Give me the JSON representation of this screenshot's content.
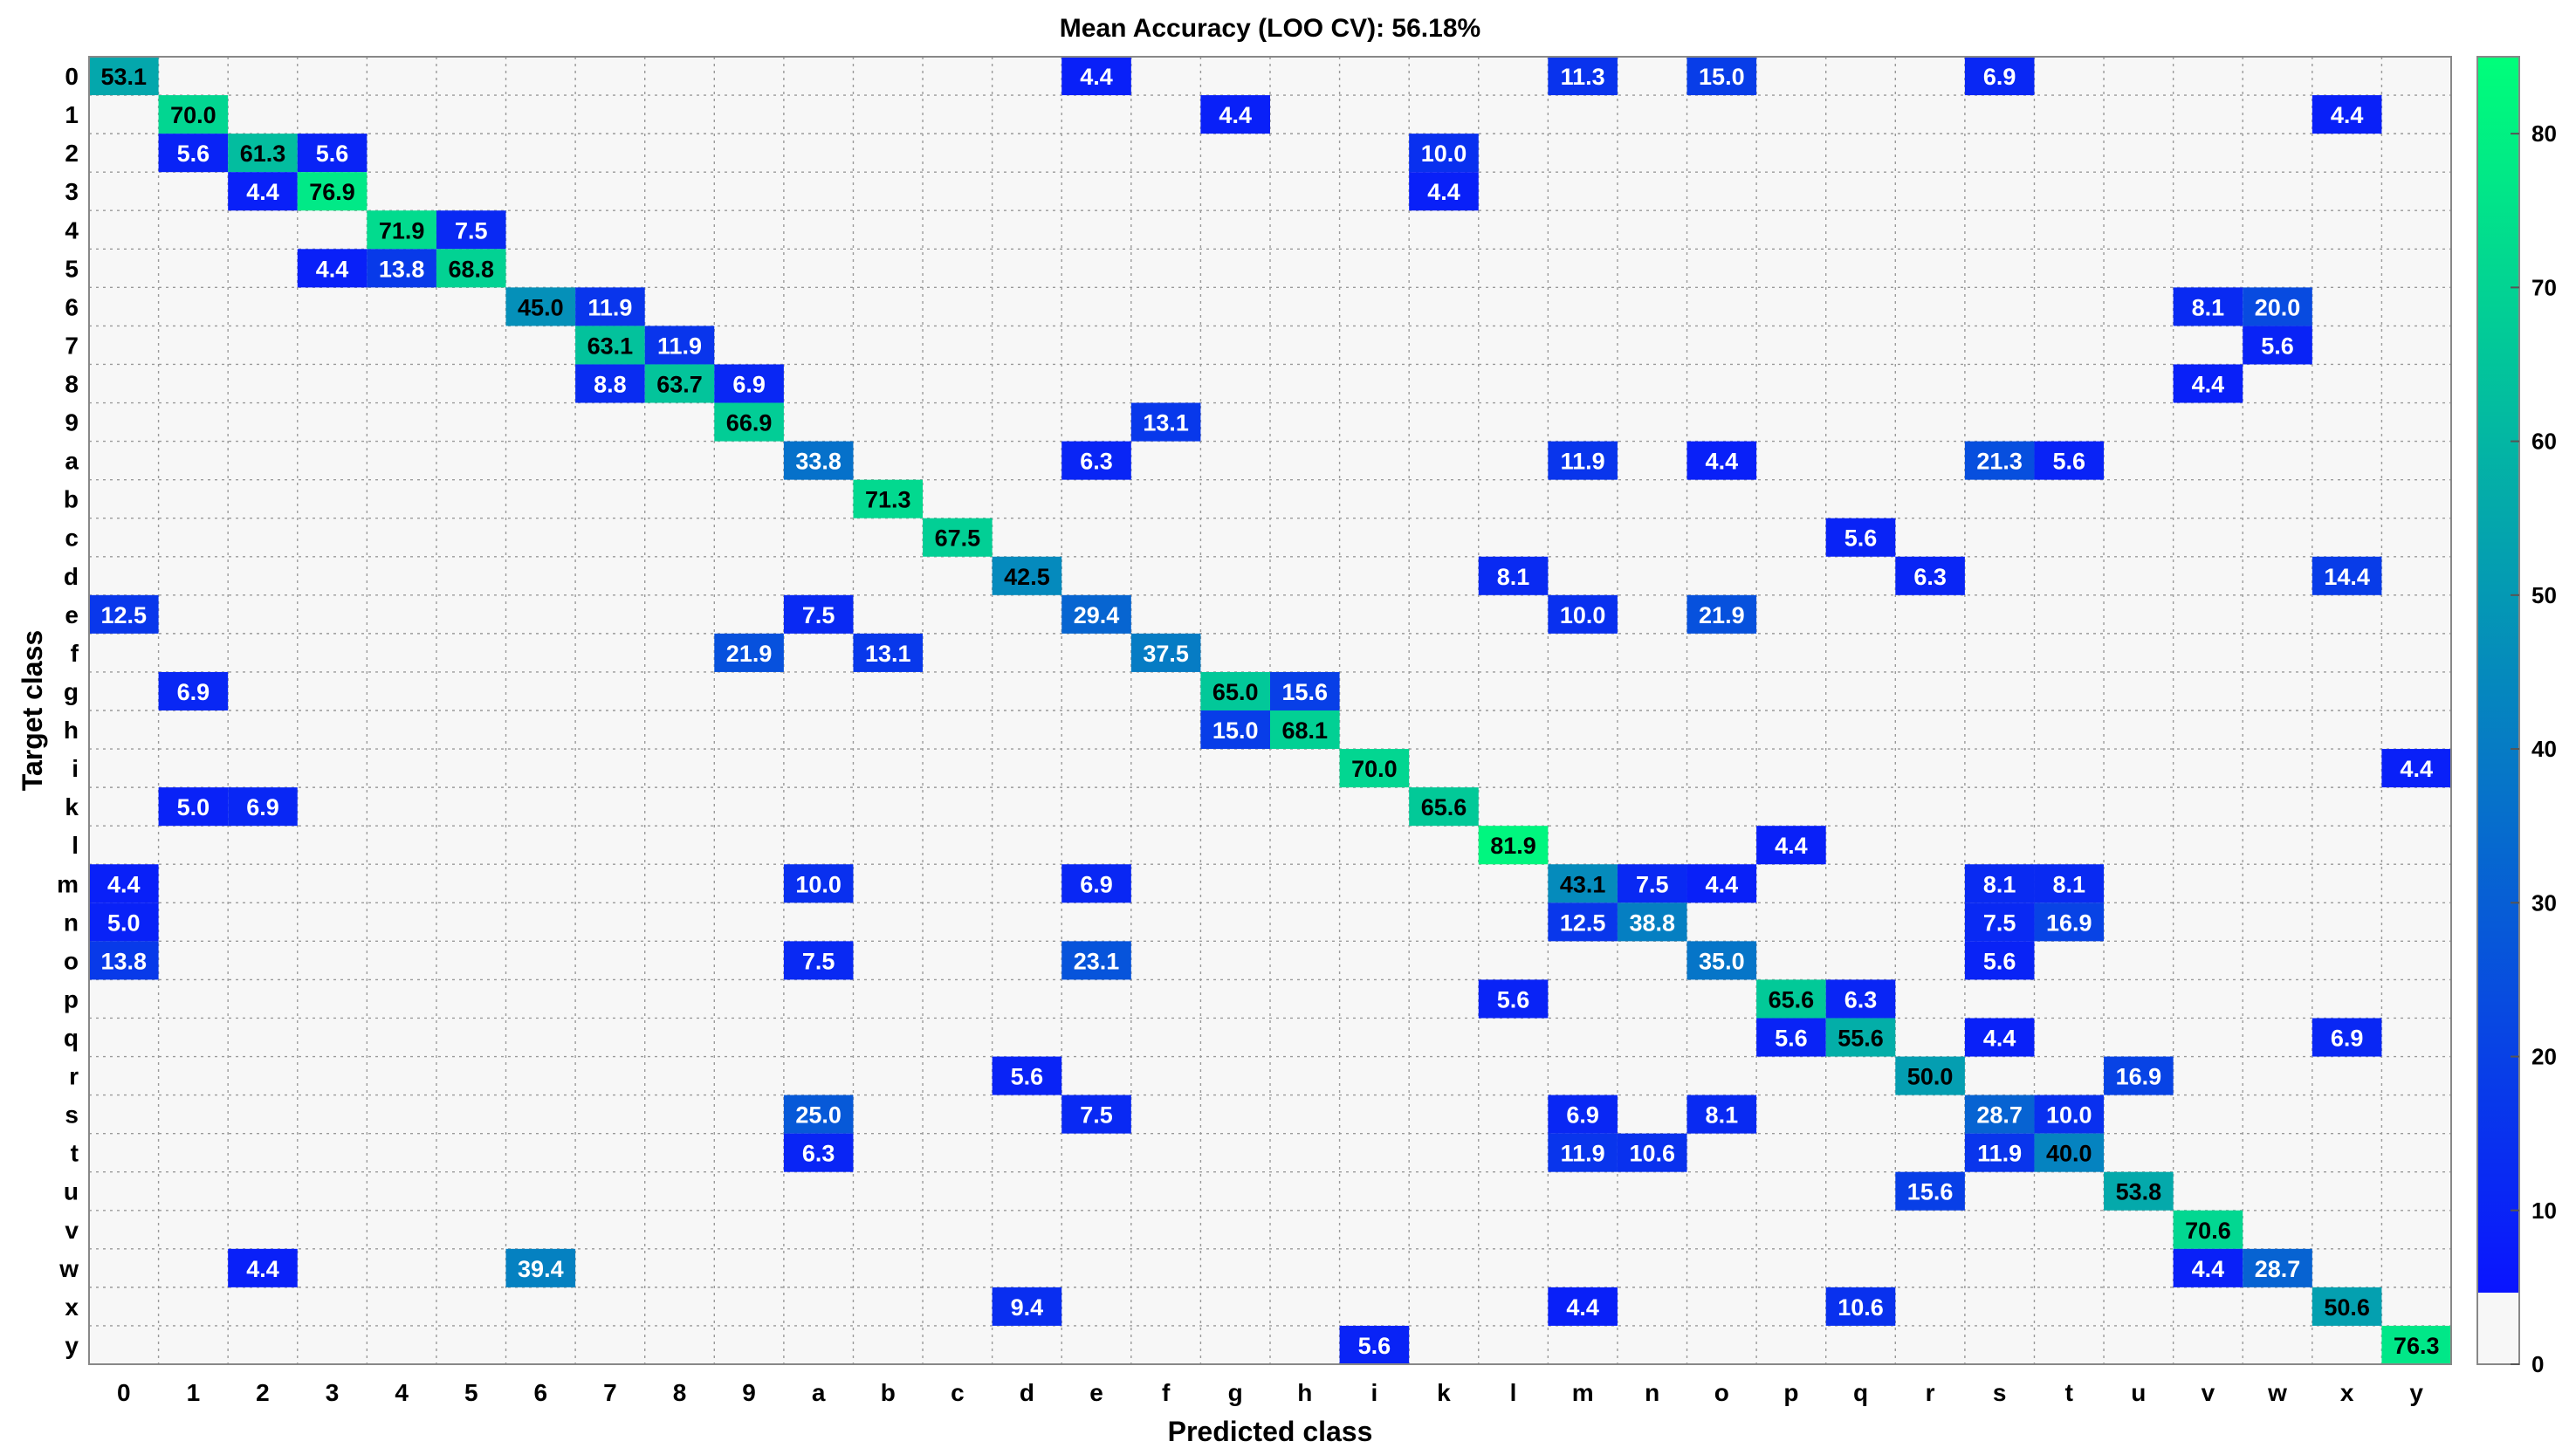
{
  "chart_data": {
    "type": "heatmap",
    "title": "Mean Accuracy (LOO CV): 56.18%",
    "xlabel": "Predicted class",
    "ylabel": "Target class",
    "classes": [
      "0",
      "1",
      "2",
      "3",
      "4",
      "5",
      "6",
      "7",
      "8",
      "9",
      "a",
      "b",
      "c",
      "d",
      "e",
      "f",
      "g",
      "h",
      "i",
      "k",
      "l",
      "m",
      "n",
      "o",
      "p",
      "q",
      "r",
      "s",
      "t",
      "u",
      "v",
      "w",
      "x",
      "y"
    ],
    "cells": [
      {
        "row": "0",
        "col": "0",
        "value": 53.1
      },
      {
        "row": "0",
        "col": "e",
        "value": 4.4
      },
      {
        "row": "0",
        "col": "m",
        "value": 11.3
      },
      {
        "row": "0",
        "col": "o",
        "value": 15.0
      },
      {
        "row": "0",
        "col": "s",
        "value": 6.9
      },
      {
        "row": "1",
        "col": "1",
        "value": 70.0
      },
      {
        "row": "1",
        "col": "g",
        "value": 4.4
      },
      {
        "row": "1",
        "col": "x",
        "value": 4.4
      },
      {
        "row": "2",
        "col": "1",
        "value": 5.6
      },
      {
        "row": "2",
        "col": "2",
        "value": 61.3
      },
      {
        "row": "2",
        "col": "3",
        "value": 5.6
      },
      {
        "row": "2",
        "col": "k",
        "value": 10.0
      },
      {
        "row": "3",
        "col": "2",
        "value": 4.4
      },
      {
        "row": "3",
        "col": "3",
        "value": 76.9
      },
      {
        "row": "3",
        "col": "k",
        "value": 4.4
      },
      {
        "row": "4",
        "col": "4",
        "value": 71.9
      },
      {
        "row": "4",
        "col": "5",
        "value": 7.5
      },
      {
        "row": "5",
        "col": "3",
        "value": 4.4
      },
      {
        "row": "5",
        "col": "4",
        "value": 13.8
      },
      {
        "row": "5",
        "col": "5",
        "value": 68.8
      },
      {
        "row": "6",
        "col": "6",
        "value": 45.0
      },
      {
        "row": "6",
        "col": "7",
        "value": 11.9
      },
      {
        "row": "6",
        "col": "v",
        "value": 8.1
      },
      {
        "row": "6",
        "col": "w",
        "value": 20.0
      },
      {
        "row": "7",
        "col": "7",
        "value": 63.1
      },
      {
        "row": "7",
        "col": "8",
        "value": 11.9
      },
      {
        "row": "7",
        "col": "w",
        "value": 5.6
      },
      {
        "row": "8",
        "col": "7",
        "value": 8.8
      },
      {
        "row": "8",
        "col": "8",
        "value": 63.7
      },
      {
        "row": "8",
        "col": "9",
        "value": 6.9
      },
      {
        "row": "8",
        "col": "v",
        "value": 4.4
      },
      {
        "row": "9",
        "col": "9",
        "value": 66.9
      },
      {
        "row": "9",
        "col": "f",
        "value": 13.1
      },
      {
        "row": "a",
        "col": "a",
        "value": 33.8
      },
      {
        "row": "a",
        "col": "e",
        "value": 6.3
      },
      {
        "row": "a",
        "col": "m",
        "value": 11.9
      },
      {
        "row": "a",
        "col": "o",
        "value": 4.4
      },
      {
        "row": "a",
        "col": "s",
        "value": 21.3
      },
      {
        "row": "a",
        "col": "t",
        "value": 5.6
      },
      {
        "row": "b",
        "col": "b",
        "value": 71.3
      },
      {
        "row": "c",
        "col": "c",
        "value": 67.5
      },
      {
        "row": "c",
        "col": "q",
        "value": 5.6
      },
      {
        "row": "d",
        "col": "d",
        "value": 42.5
      },
      {
        "row": "d",
        "col": "l",
        "value": 8.1
      },
      {
        "row": "d",
        "col": "r",
        "value": 6.3
      },
      {
        "row": "d",
        "col": "x",
        "value": 14.4
      },
      {
        "row": "e",
        "col": "0",
        "value": 12.5
      },
      {
        "row": "e",
        "col": "a",
        "value": 7.5
      },
      {
        "row": "e",
        "col": "e",
        "value": 29.4
      },
      {
        "row": "e",
        "col": "m",
        "value": 10.0
      },
      {
        "row": "e",
        "col": "o",
        "value": 21.9
      },
      {
        "row": "f",
        "col": "9",
        "value": 21.9
      },
      {
        "row": "f",
        "col": "b",
        "value": 13.1
      },
      {
        "row": "f",
        "col": "f",
        "value": 37.5
      },
      {
        "row": "g",
        "col": "1",
        "value": 6.9
      },
      {
        "row": "g",
        "col": "g",
        "value": 65.0
      },
      {
        "row": "g",
        "col": "h",
        "value": 15.6
      },
      {
        "row": "h",
        "col": "g",
        "value": 15.0
      },
      {
        "row": "h",
        "col": "h",
        "value": 68.1
      },
      {
        "row": "i",
        "col": "i",
        "value": 70.0
      },
      {
        "row": "i",
        "col": "y",
        "value": 4.4
      },
      {
        "row": "k",
        "col": "1",
        "value": 5.0
      },
      {
        "row": "k",
        "col": "2",
        "value": 6.9
      },
      {
        "row": "k",
        "col": "k",
        "value": 65.6
      },
      {
        "row": "l",
        "col": "l",
        "value": 81.9
      },
      {
        "row": "l",
        "col": "p",
        "value": 4.4
      },
      {
        "row": "m",
        "col": "0",
        "value": 4.4
      },
      {
        "row": "m",
        "col": "a",
        "value": 10.0
      },
      {
        "row": "m",
        "col": "e",
        "value": 6.9
      },
      {
        "row": "m",
        "col": "m",
        "value": 43.1
      },
      {
        "row": "m",
        "col": "n",
        "value": 7.5
      },
      {
        "row": "m",
        "col": "o",
        "value": 4.4
      },
      {
        "row": "m",
        "col": "s",
        "value": 8.1
      },
      {
        "row": "m",
        "col": "t",
        "value": 8.1
      },
      {
        "row": "n",
        "col": "0",
        "value": 5.0
      },
      {
        "row": "n",
        "col": "m",
        "value": 12.5
      },
      {
        "row": "n",
        "col": "n",
        "value": 38.8
      },
      {
        "row": "n",
        "col": "s",
        "value": 7.5
      },
      {
        "row": "n",
        "col": "t",
        "value": 16.9
      },
      {
        "row": "o",
        "col": "0",
        "value": 13.8
      },
      {
        "row": "o",
        "col": "a",
        "value": 7.5
      },
      {
        "row": "o",
        "col": "e",
        "value": 23.1
      },
      {
        "row": "o",
        "col": "o",
        "value": 35.0
      },
      {
        "row": "o",
        "col": "s",
        "value": 5.6
      },
      {
        "row": "p",
        "col": "l",
        "value": 5.6
      },
      {
        "row": "p",
        "col": "p",
        "value": 65.6
      },
      {
        "row": "p",
        "col": "q",
        "value": 6.3
      },
      {
        "row": "q",
        "col": "p",
        "value": 5.6
      },
      {
        "row": "q",
        "col": "q",
        "value": 55.6
      },
      {
        "row": "q",
        "col": "s",
        "value": 4.4
      },
      {
        "row": "q",
        "col": "x",
        "value": 6.9
      },
      {
        "row": "r",
        "col": "d",
        "value": 5.6
      },
      {
        "row": "r",
        "col": "r",
        "value": 50.0
      },
      {
        "row": "r",
        "col": "u",
        "value": 16.9
      },
      {
        "row": "s",
        "col": "a",
        "value": 25.0
      },
      {
        "row": "s",
        "col": "e",
        "value": 7.5
      },
      {
        "row": "s",
        "col": "m",
        "value": 6.9
      },
      {
        "row": "s",
        "col": "o",
        "value": 8.1
      },
      {
        "row": "s",
        "col": "s",
        "value": 28.7
      },
      {
        "row": "s",
        "col": "t",
        "value": 10.0
      },
      {
        "row": "t",
        "col": "a",
        "value": 6.3
      },
      {
        "row": "t",
        "col": "m",
        "value": 11.9
      },
      {
        "row": "t",
        "col": "n",
        "value": 10.6
      },
      {
        "row": "t",
        "col": "s",
        "value": 11.9
      },
      {
        "row": "t",
        "col": "t",
        "value": 40.0
      },
      {
        "row": "u",
        "col": "r",
        "value": 15.6
      },
      {
        "row": "u",
        "col": "u",
        "value": 53.8
      },
      {
        "row": "v",
        "col": "v",
        "value": 70.6
      },
      {
        "row": "w",
        "col": "2",
        "value": 4.4
      },
      {
        "row": "w",
        "col": "6",
        "value": 39.4
      },
      {
        "row": "w",
        "col": "v",
        "value": 4.4
      },
      {
        "row": "w",
        "col": "w",
        "value": 28.7
      },
      {
        "row": "x",
        "col": "d",
        "value": 9.4
      },
      {
        "row": "x",
        "col": "m",
        "value": 4.4
      },
      {
        "row": "x",
        "col": "q",
        "value": 10.6
      },
      {
        "row": "x",
        "col": "x",
        "value": 50.6
      },
      {
        "row": "y",
        "col": "i",
        "value": 5.6
      },
      {
        "row": "y",
        "col": "y",
        "value": 76.3
      }
    ],
    "colorbar": {
      "range": [
        0,
        85
      ],
      "ticks": [
        0,
        10,
        20,
        30,
        40,
        50,
        60,
        70,
        80
      ],
      "colors": {
        "zero": "#f7f7f7",
        "low": "#0a14ff",
        "high": "#00ff7a"
      }
    },
    "grid": true
  }
}
